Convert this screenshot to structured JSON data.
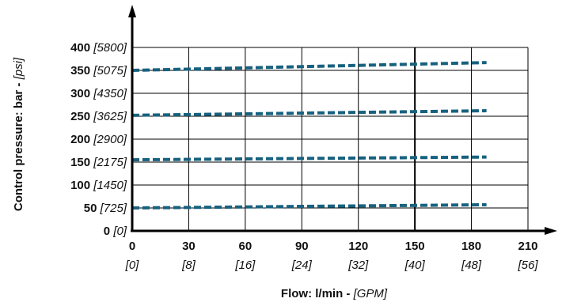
{
  "chart_data": {
    "type": "line",
    "title": "",
    "xlabel": "Flow: l/min - ",
    "xlabel_unit": "[GPM]",
    "ylabel": "Control pressure: bar - ",
    "ylabel_unit": "[psi]",
    "xlim": [
      0,
      210
    ],
    "ylim": [
      0,
      400
    ],
    "grid": true,
    "x_ticks": [
      {
        "value": 0,
        "label": "0",
        "sub": "[0]"
      },
      {
        "value": 30,
        "label": "30",
        "sub": "[8]"
      },
      {
        "value": 60,
        "label": "60",
        "sub": "[16]"
      },
      {
        "value": 90,
        "label": "90",
        "sub": "[24]"
      },
      {
        "value": 120,
        "label": "120",
        "sub": "[32]"
      },
      {
        "value": 150,
        "label": "150",
        "sub": "[40]"
      },
      {
        "value": 180,
        "label": "180",
        "sub": "[48]"
      },
      {
        "value": 210,
        "label": "210",
        "sub": "[56]"
      }
    ],
    "y_ticks": [
      {
        "value": 0,
        "label": "0",
        "sub": "[0]"
      },
      {
        "value": 50,
        "label": "50",
        "sub": "[725]"
      },
      {
        "value": 100,
        "label": "100",
        "sub": "[1450]"
      },
      {
        "value": 150,
        "label": "150",
        "sub": "[2175]"
      },
      {
        "value": 200,
        "label": "200",
        "sub": "[2900]"
      },
      {
        "value": 250,
        "label": "250",
        "sub": "[3625]"
      },
      {
        "value": 300,
        "label": "300",
        "sub": "[4350]"
      },
      {
        "value": 350,
        "label": "350",
        "sub": "[5075]"
      },
      {
        "value": 400,
        "label": "400",
        "sub": "[5800]"
      }
    ],
    "series": [
      {
        "x": [
          0,
          188
        ],
        "y": [
          50,
          57
        ]
      },
      {
        "x": [
          0,
          188
        ],
        "y": [
          155,
          161
        ]
      },
      {
        "x": [
          0,
          188
        ],
        "y": [
          252,
          262
        ]
      },
      {
        "x": [
          0,
          188
        ],
        "y": [
          350,
          367
        ]
      }
    ],
    "colors": {
      "series": "#17617f",
      "axis": "#000000",
      "grid": "#000000"
    }
  }
}
